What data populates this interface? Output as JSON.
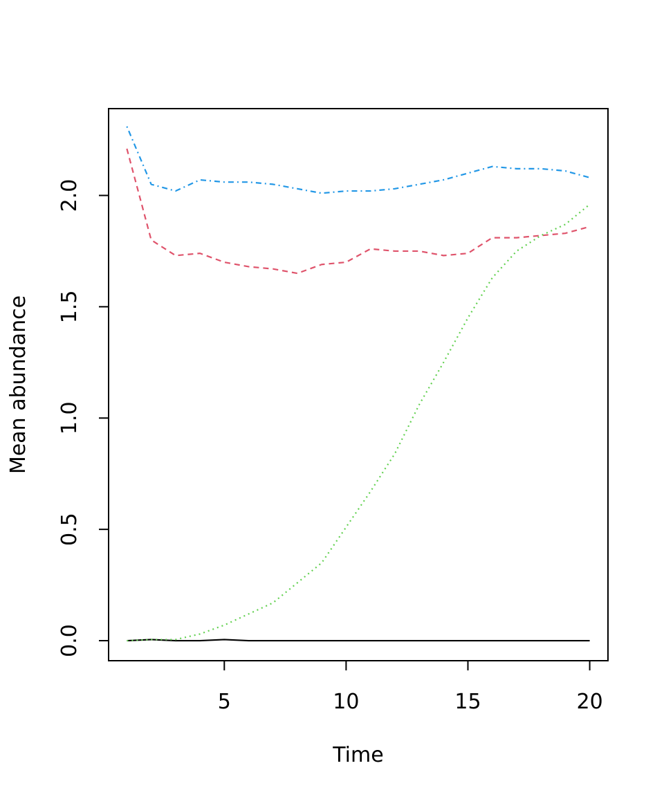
{
  "chart_data": {
    "type": "line",
    "title": "",
    "xlabel": "Time",
    "ylabel": "Mean abundance",
    "xlim": [
      0.25,
      20.75
    ],
    "ylim": [
      -0.09,
      2.39
    ],
    "x_ticks": [
      5,
      10,
      15,
      20
    ],
    "x_tick_labels": [
      "5",
      "10",
      "15",
      "20"
    ],
    "y_ticks": [
      0,
      0.5,
      1,
      1.5,
      2
    ],
    "y_tick_labels": [
      "0.0",
      "0.5",
      "1.0",
      "1.5",
      "2.0"
    ],
    "grid": false,
    "legend": "none",
    "x": [
      1,
      2,
      3,
      4,
      5,
      6,
      7,
      8,
      9,
      10,
      11,
      12,
      13,
      14,
      15,
      16,
      17,
      18,
      19,
      20
    ],
    "series": [
      {
        "color": "#000000",
        "line_style": "solid",
        "values": [
          0,
          0.005,
          0,
          0,
          0.005,
          0,
          0,
          0,
          0,
          0,
          0,
          0,
          0,
          0,
          0,
          0,
          0,
          0,
          0,
          0
        ]
      },
      {
        "color": "#DF536B",
        "line_style": "dashed",
        "values": [
          2.21,
          1.8,
          1.73,
          1.74,
          1.7,
          1.68,
          1.67,
          1.65,
          1.69,
          1.7,
          1.76,
          1.75,
          1.75,
          1.73,
          1.74,
          1.81,
          1.81,
          1.82,
          1.83,
          1.86
        ]
      },
      {
        "color": "#61D04F",
        "line_style": "dotted",
        "values": [
          0,
          0.005,
          0.005,
          0.03,
          0.07,
          0.12,
          0.17,
          0.26,
          0.35,
          0.51,
          0.67,
          0.84,
          1.06,
          1.25,
          1.45,
          1.63,
          1.75,
          1.82,
          1.87,
          1.96
        ]
      },
      {
        "color": "#2297E6",
        "line_style": "dotdash",
        "values": [
          2.31,
          2.05,
          2.02,
          2.07,
          2.06,
          2.06,
          2.05,
          2.03,
          2.01,
          2.02,
          2.02,
          2.03,
          2.05,
          2.07,
          2.1,
          2.13,
          2.12,
          2.12,
          2.11,
          2.08
        ]
      }
    ]
  }
}
